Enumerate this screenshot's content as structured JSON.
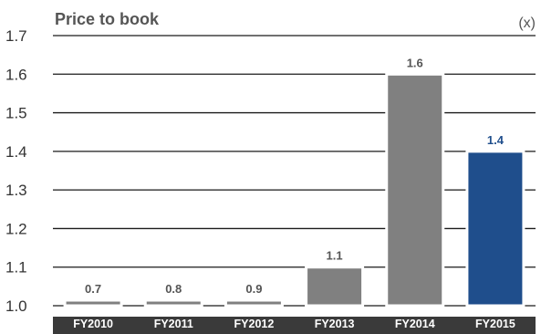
{
  "chart_data": {
    "type": "bar",
    "title": "Price to book",
    "unit": "(x)",
    "categories": [
      "FY2010",
      "FY2011",
      "FY2012",
      "FY2013",
      "FY2014",
      "FY2015"
    ],
    "values": [
      0.7,
      0.8,
      0.9,
      1.1,
      1.6,
      1.4
    ],
    "data_labels": [
      "0.7",
      "0.8",
      "0.9",
      "1.1",
      "1.6",
      "1.4"
    ],
    "yticks": [
      "1.7",
      "1.6",
      "1.5",
      "1.4",
      "1.3",
      "1.2",
      "1.1",
      "1.0"
    ],
    "ylim": [
      1.0,
      1.7
    ],
    "grid": true,
    "colors": {
      "bar": "#808080",
      "highlight": "#1f4e8c",
      "axis_band": "#3a3a3a"
    },
    "highlight_index": 5
  }
}
